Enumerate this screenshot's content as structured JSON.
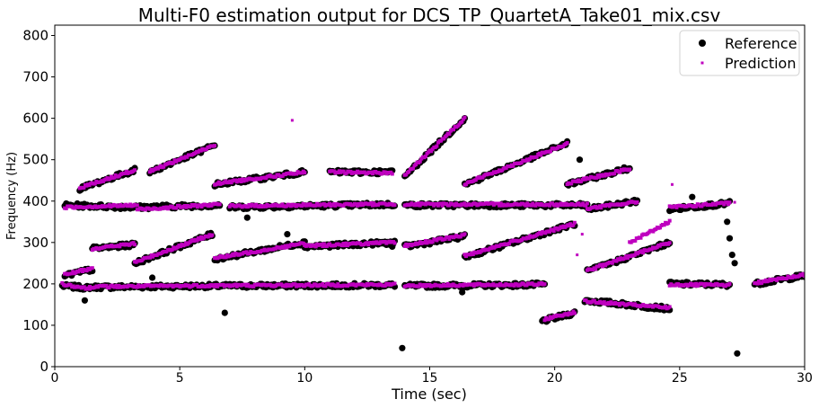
{
  "chart_data": {
    "type": "scatter",
    "title": "Multi-F0 estimation output for DCS_TP_QuartetA_Take01_mix.csv",
    "xlabel": "Time (sec)",
    "ylabel": "Frequency (Hz)",
    "xlim": [
      0,
      30
    ],
    "ylim": [
      0,
      825
    ],
    "xticks": [
      0,
      5,
      10,
      15,
      20,
      25,
      30
    ],
    "yticks": [
      0,
      100,
      200,
      300,
      400,
      500,
      600,
      700,
      800
    ],
    "grid": false,
    "legend": {
      "placement": "top-right"
    },
    "series": [
      {
        "name": "Reference",
        "color": "#000000",
        "marker": "circle",
        "segments": [
          {
            "t": [
              0.3,
              1.4
            ],
            "f": [
              195,
              190
            ]
          },
          {
            "t": [
              1.4,
              6.4
            ],
            "f": [
              192,
              195
            ]
          },
          {
            "t": [
              6.4,
              13.6
            ],
            "f": [
              195,
              197
            ]
          },
          {
            "t": [
              14.0,
              19.6
            ],
            "f": [
              195,
              198
            ]
          },
          {
            "t": [
              19.5,
              20.8
            ],
            "f": [
              110,
              130
            ]
          },
          {
            "t": [
              21.2,
              24.6
            ],
            "f": [
              160,
              140
            ]
          },
          {
            "t": [
              24.6,
              27.0
            ],
            "f": [
              200,
              198
            ]
          },
          {
            "t": [
              28.0,
              30.0
            ],
            "f": [
              200,
              220
            ]
          },
          {
            "t": [
              0.4,
              3.3
            ],
            "f": [
              390,
              385
            ]
          },
          {
            "t": [
              3.3,
              6.6
            ],
            "f": [
              385,
              390
            ]
          },
          {
            "t": [
              7.0,
              13.6
            ],
            "f": [
              385,
              392
            ]
          },
          {
            "t": [
              14.0,
              21.3
            ],
            "f": [
              390,
              390
            ]
          },
          {
            "t": [
              21.3,
              23.3
            ],
            "f": [
              380,
              400
            ]
          },
          {
            "t": [
              24.6,
              27.0
            ],
            "f": [
              380,
              395
            ]
          },
          {
            "t": [
              0.4,
              1.5
            ],
            "f": [
              220,
              235
            ]
          },
          {
            "t": [
              1.5,
              3.2
            ],
            "f": [
              285,
              295
            ]
          },
          {
            "t": [
              3.2,
              6.3
            ],
            "f": [
              250,
              320
            ]
          },
          {
            "t": [
              6.4,
              10.0
            ],
            "f": [
              260,
              300
            ]
          },
          {
            "t": [
              10.0,
              13.6
            ],
            "f": [
              290,
              300
            ]
          },
          {
            "t": [
              14.0,
              16.4
            ],
            "f": [
              290,
              315
            ]
          },
          {
            "t": [
              16.4,
              20.8
            ],
            "f": [
              265,
              345
            ]
          },
          {
            "t": [
              21.3,
              24.6
            ],
            "f": [
              230,
              300
            ]
          },
          {
            "t": [
              1.0,
              3.2
            ],
            "f": [
              430,
              475
            ]
          },
          {
            "t": [
              3.8,
              6.4
            ],
            "f": [
              470,
              535
            ]
          },
          {
            "t": [
              6.4,
              10.0
            ],
            "f": [
              440,
              470
            ]
          },
          {
            "t": [
              11.0,
              13.5
            ],
            "f": [
              470,
              470
            ]
          },
          {
            "t": [
              14.0,
              16.4
            ],
            "f": [
              460,
              600
            ]
          },
          {
            "t": [
              16.4,
              20.5
            ],
            "f": [
              440,
              540
            ]
          },
          {
            "t": [
              20.5,
              23.0
            ],
            "f": [
              440,
              480
            ]
          }
        ],
        "points": [
          [
            1.2,
            160
          ],
          [
            3.9,
            215
          ],
          [
            6.8,
            130
          ],
          [
            7.7,
            360
          ],
          [
            8.5,
            280
          ],
          [
            9.3,
            320
          ],
          [
            11.1,
            200
          ],
          [
            13.5,
            290
          ],
          [
            13.9,
            45
          ],
          [
            16.3,
            180
          ],
          [
            21.0,
            500
          ],
          [
            26.9,
            350
          ],
          [
            27.0,
            310
          ],
          [
            27.1,
            270
          ],
          [
            27.2,
            250
          ],
          [
            27.3,
            32
          ],
          [
            25.5,
            410
          ]
        ]
      },
      {
        "name": "Prediction",
        "color": "#bf00bf",
        "marker": "square",
        "segments": [
          {
            "t": [
              0.3,
              1.4
            ],
            "f": [
              200,
              188
            ]
          },
          {
            "t": [
              1.4,
              6.4
            ],
            "f": [
              193,
              196
            ]
          },
          {
            "t": [
              6.4,
              13.6
            ],
            "f": [
              196,
              198
            ]
          },
          {
            "t": [
              14.0,
              19.6
            ],
            "f": [
              196,
              199
            ]
          },
          {
            "t": [
              19.6,
              20.8
            ],
            "f": [
              115,
              132
            ]
          },
          {
            "t": [
              21.2,
              24.6
            ],
            "f": [
              158,
              142
            ]
          },
          {
            "t": [
              24.6,
              27.0
            ],
            "f": [
              198,
              197
            ]
          },
          {
            "t": [
              28.0,
              30.0
            ],
            "f": [
              202,
              222
            ]
          },
          {
            "t": [
              0.4,
              3.3
            ],
            "f": [
              385,
              390
            ]
          },
          {
            "t": [
              3.3,
              6.6
            ],
            "f": [
              380,
              392
            ]
          },
          {
            "t": [
              7.0,
              13.6
            ],
            "f": [
              388,
              393
            ]
          },
          {
            "t": [
              14.0,
              21.3
            ],
            "f": [
              392,
              392
            ]
          },
          {
            "t": [
              21.3,
              23.3
            ],
            "f": [
              382,
              398
            ]
          },
          {
            "t": [
              23.0,
              24.6
            ],
            "f": [
              300,
              350
            ]
          },
          {
            "t": [
              24.6,
              27.0
            ],
            "f": [
              385,
              395
            ]
          },
          {
            "t": [
              0.4,
              1.5
            ],
            "f": [
              222,
              238
            ]
          },
          {
            "t": [
              1.5,
              3.2
            ],
            "f": [
              285,
              297
            ]
          },
          {
            "t": [
              3.2,
              6.3
            ],
            "f": [
              252,
              320
            ]
          },
          {
            "t": [
              6.4,
              10.0
            ],
            "f": [
              262,
              298
            ]
          },
          {
            "t": [
              10.0,
              13.6
            ],
            "f": [
              292,
              300
            ]
          },
          {
            "t": [
              14.0,
              16.4
            ],
            "f": [
              292,
              318
            ]
          },
          {
            "t": [
              16.4,
              20.8
            ],
            "f": [
              268,
              345
            ]
          },
          {
            "t": [
              21.3,
              24.6
            ],
            "f": [
              232,
              300
            ]
          },
          {
            "t": [
              1.0,
              3.2
            ],
            "f": [
              432,
              475
            ]
          },
          {
            "t": [
              3.8,
              6.4
            ],
            "f": [
              472,
              535
            ]
          },
          {
            "t": [
              6.4,
              10.0
            ],
            "f": [
              442,
              470
            ]
          },
          {
            "t": [
              11.0,
              13.5
            ],
            "f": [
              470,
              468
            ]
          },
          {
            "t": [
              14.0,
              16.4
            ],
            "f": [
              462,
              600
            ]
          },
          {
            "t": [
              16.4,
              20.5
            ],
            "f": [
              442,
              538
            ]
          },
          {
            "t": [
              20.5,
              23.0
            ],
            "f": [
              442,
              478
            ]
          }
        ],
        "points": [
          [
            9.5,
            595
          ],
          [
            24.7,
            440
          ],
          [
            27.2,
            397
          ],
          [
            20.9,
            270
          ],
          [
            21.1,
            320
          ]
        ]
      }
    ]
  }
}
